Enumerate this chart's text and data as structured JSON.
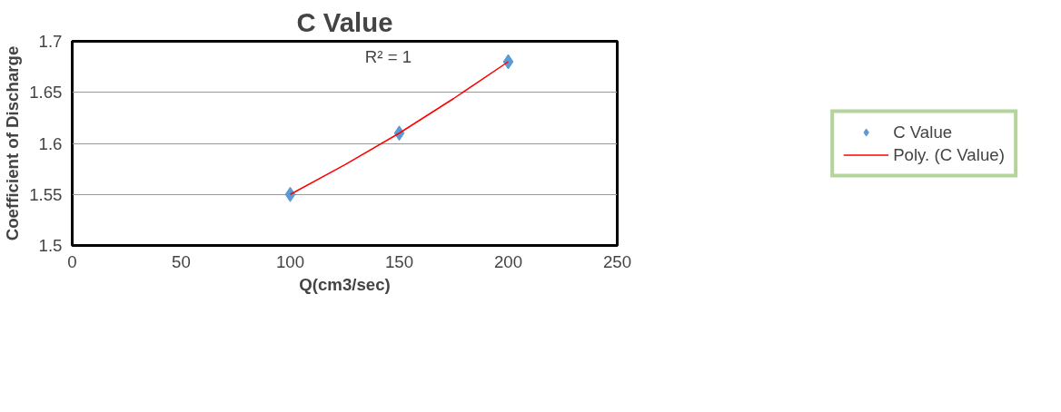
{
  "chart_data": {
    "type": "scatter",
    "title": "C Value",
    "xlabel": "Q(cm3/sec)",
    "ylabel": "Coefficient of Discharge",
    "xlim": [
      0,
      250
    ],
    "xticks": [
      0,
      50,
      100,
      150,
      200,
      250
    ],
    "ylim": [
      1.5,
      1.7
    ],
    "yticks": [
      1.5,
      1.55,
      1.6,
      1.65,
      1.7
    ],
    "grid": "y",
    "legend": "right",
    "annotations": [
      "R² = 1"
    ],
    "series": [
      {
        "name": "C Value",
        "marker": "diamond",
        "color": "#5b9bd5",
        "x": [
          100,
          150,
          200
        ],
        "values": [
          1.55,
          1.61,
          1.68
        ]
      },
      {
        "name": "Poly. (C Value)",
        "type": "line",
        "line_style": "solid",
        "color": "#ff0000",
        "x": [
          100,
          125,
          150,
          175,
          200
        ],
        "values": [
          1.55,
          1.579,
          1.61,
          1.644,
          1.68
        ]
      }
    ]
  }
}
